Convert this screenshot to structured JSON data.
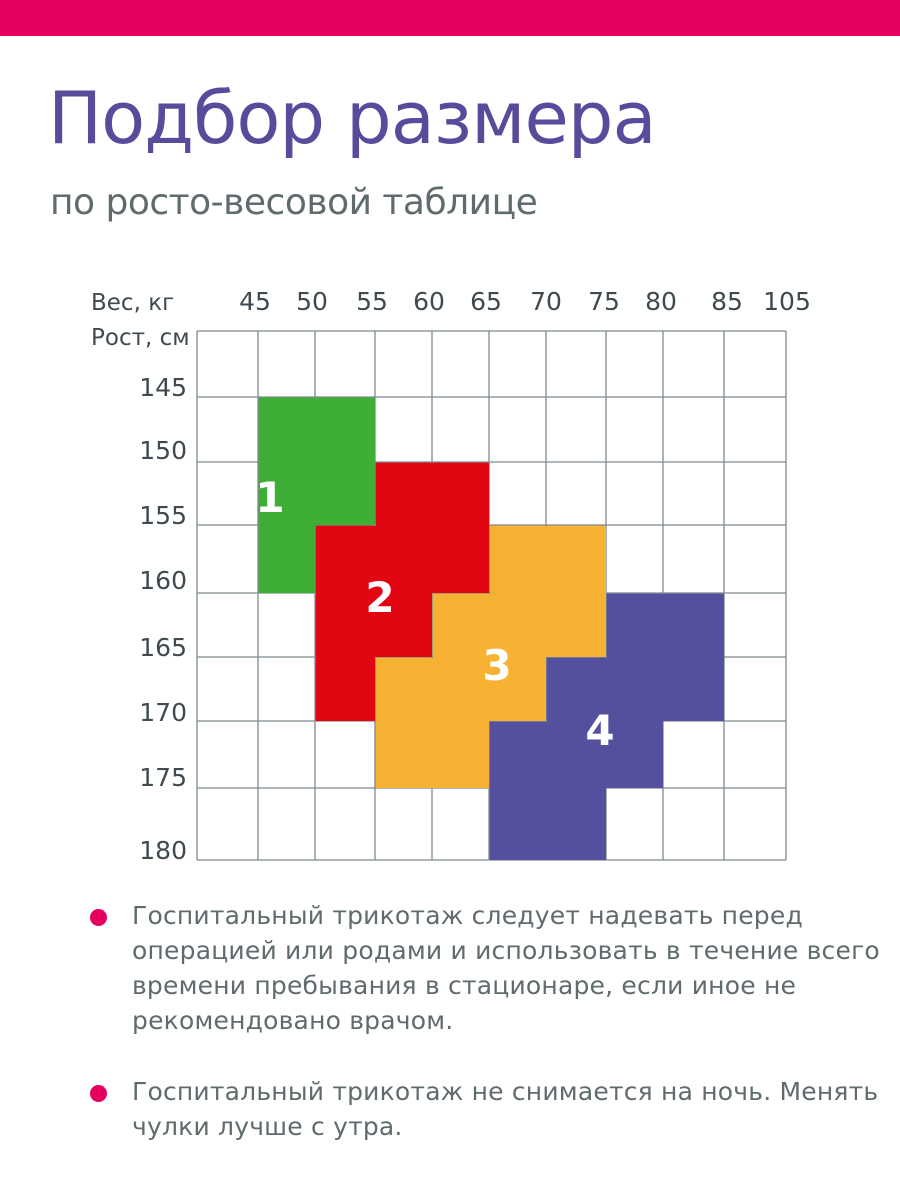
{
  "colors": {
    "accent": "#e5005e",
    "title": "#5a4a9c",
    "subtitle": "#5f6b6d",
    "text": "#5f6b6d",
    "grid": "#7f8a8f",
    "axis_text": "#3f4a50"
  },
  "header": {
    "title": "Подбор размера",
    "subtitle": "по росто-весовой таблице"
  },
  "chart_data": {
    "type": "heatmap",
    "x_axis_label": "Вес, кг",
    "y_axis_label": "Рост, см",
    "x_ticks": [
      "45",
      "50",
      "55",
      "60",
      "65",
      "70",
      "75",
      "80",
      "85",
      "105"
    ],
    "y_ticks": [
      "145",
      "150",
      "155",
      "160",
      "165",
      "170",
      "175",
      "180"
    ],
    "grid": true,
    "sizes": [
      {
        "label": "1",
        "color": "#3fae35",
        "regions": [
          {
            "weight": [
              "45",
              "55"
            ],
            "height": [
              "145",
              "155"
            ]
          },
          {
            "weight": [
              "45",
              "50"
            ],
            "height": [
              "155",
              "160"
            ]
          }
        ]
      },
      {
        "label": "2",
        "color": "#e20613",
        "regions": [
          {
            "weight": [
              "55",
              "65"
            ],
            "height": [
              "150",
              "155"
            ]
          },
          {
            "weight": [
              "50",
              "65"
            ],
            "height": [
              "155",
              "160"
            ]
          },
          {
            "weight": [
              "50",
              "60"
            ],
            "height": [
              "160",
              "165"
            ]
          },
          {
            "weight": [
              "50",
              "55"
            ],
            "height": [
              "165",
              "170"
            ]
          }
        ]
      },
      {
        "label": "3",
        "color": "#f7b234",
        "regions": [
          {
            "weight": [
              "65",
              "75"
            ],
            "height": [
              "155",
              "160"
            ]
          },
          {
            "weight": [
              "60",
              "75"
            ],
            "height": [
              "160",
              "165"
            ]
          },
          {
            "weight": [
              "55",
              "70"
            ],
            "height": [
              "165",
              "170"
            ]
          },
          {
            "weight": [
              "55",
              "65"
            ],
            "height": [
              "170",
              "175"
            ]
          }
        ]
      },
      {
        "label": "4",
        "color": "#54509e",
        "regions": [
          {
            "weight": [
              "75",
              "85"
            ],
            "height": [
              "160",
              "165"
            ]
          },
          {
            "weight": [
              "70",
              "85"
            ],
            "height": [
              "165",
              "170"
            ]
          },
          {
            "weight": [
              "65",
              "80"
            ],
            "height": [
              "170",
              "175"
            ]
          },
          {
            "weight": [
              "65",
              "75"
            ],
            "height": [
              "175",
              "180"
            ]
          }
        ]
      }
    ]
  },
  "notes": [
    "Госпитальный трикотаж следует надевать перед операцией или родами и использовать в течение всего времени пребывания в стационаре, если иное не рекомендовано врачом.",
    "Госпитальный трикотаж не снимается на ночь. Менять чулки лучше с утра."
  ]
}
